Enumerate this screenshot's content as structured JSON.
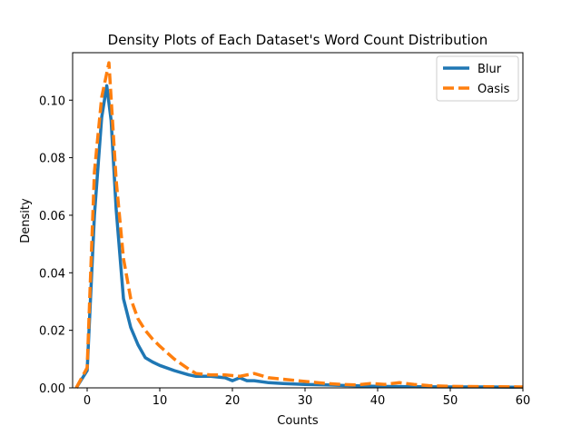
{
  "chart_data": {
    "type": "line",
    "title": "Density Plots of Each Dataset's Word Count Distribution",
    "xlabel": "Counts",
    "ylabel": "Density",
    "xlim": [
      -2,
      60
    ],
    "ylim": [
      0,
      0.1165
    ],
    "x_ticks": [
      0,
      10,
      20,
      30,
      40,
      50,
      60
    ],
    "x_tick_labels": [
      "0",
      "10",
      "20",
      "30",
      "40",
      "50",
      "60"
    ],
    "y_ticks": [
      0.0,
      0.02,
      0.04,
      0.06,
      0.08,
      0.1
    ],
    "y_tick_labels": [
      "0.00",
      "0.02",
      "0.04",
      "0.06",
      "0.08",
      "0.10"
    ],
    "grid": false,
    "legend_position": "top-right",
    "series": [
      {
        "name": "Blur",
        "color": "#1f77b4",
        "style": "solid",
        "x": [
          -1.5,
          0,
          1,
          2,
          2.7,
          3.3,
          4,
          5,
          6,
          7,
          8,
          9,
          10,
          12,
          14,
          15,
          17,
          19,
          20,
          21,
          22,
          23,
          25,
          27,
          30,
          33,
          36,
          40,
          45,
          50,
          55,
          60
        ],
        "y": [
          0.0,
          0.006,
          0.06,
          0.094,
          0.105,
          0.093,
          0.062,
          0.031,
          0.021,
          0.015,
          0.0105,
          0.009,
          0.0078,
          0.006,
          0.0045,
          0.004,
          0.004,
          0.0035,
          0.0025,
          0.0035,
          0.0025,
          0.0025,
          0.0018,
          0.0015,
          0.0012,
          0.001,
          0.0008,
          0.0005,
          0.0004,
          0.0003,
          0.0003,
          0.0002
        ]
      },
      {
        "name": "Oasis",
        "color": "#ff7f0e",
        "style": "dashed",
        "x": [
          -1.5,
          0,
          1,
          2,
          3,
          4,
          5,
          6,
          7,
          8,
          9,
          10,
          12,
          14,
          15,
          17,
          19,
          21,
          23,
          25,
          27,
          29,
          31,
          33,
          35,
          37,
          39,
          41,
          43,
          45,
          47,
          50,
          55,
          60
        ],
        "y": [
          0.0,
          0.007,
          0.075,
          0.101,
          0.113,
          0.072,
          0.045,
          0.031,
          0.024,
          0.02,
          0.017,
          0.0145,
          0.01,
          0.0065,
          0.005,
          0.0045,
          0.0045,
          0.004,
          0.005,
          0.0035,
          0.003,
          0.0025,
          0.002,
          0.0015,
          0.0012,
          0.001,
          0.0015,
          0.0012,
          0.0018,
          0.0012,
          0.0008,
          0.0005,
          0.0004,
          0.0003
        ]
      }
    ]
  }
}
